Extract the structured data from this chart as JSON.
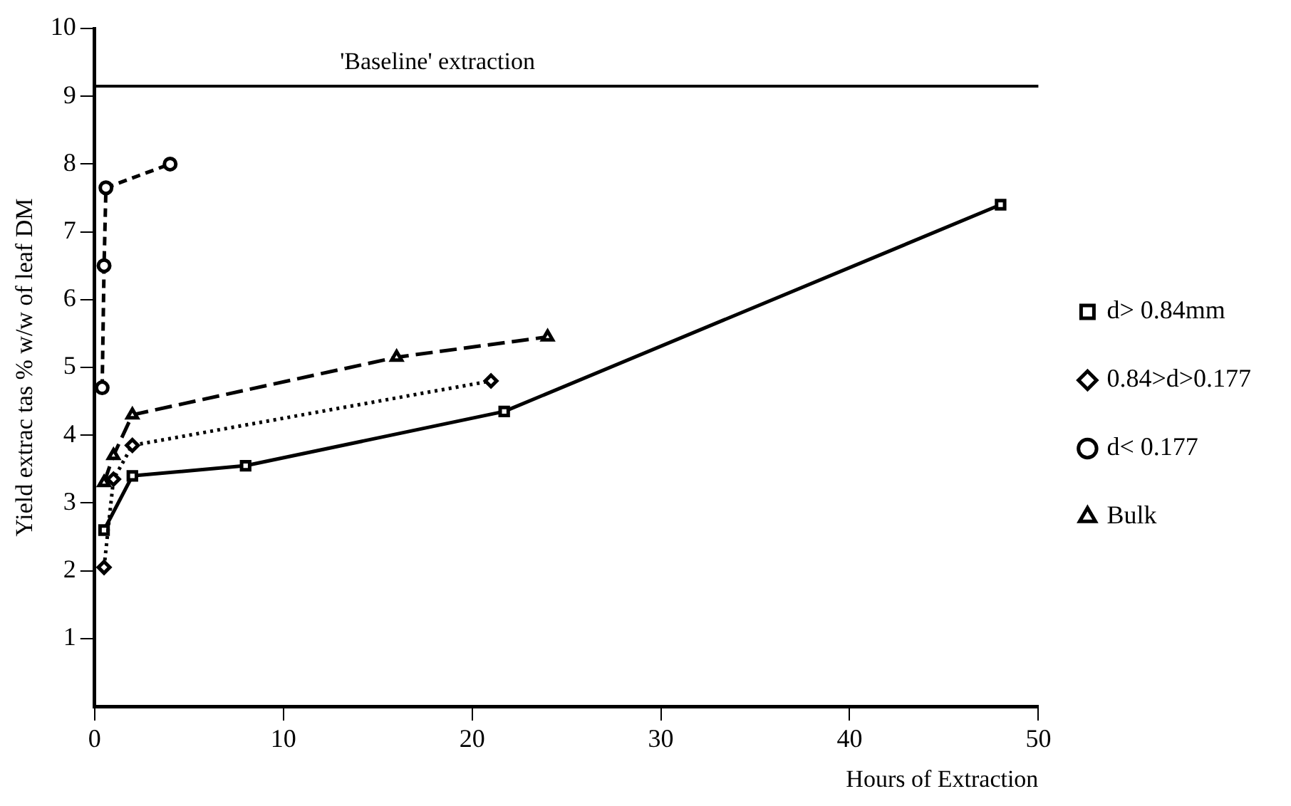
{
  "chart_data": {
    "type": "line",
    "xlabel": "Hours of Extraction",
    "ylabel": "Yield extrac tas % w/w of leaf DM",
    "xlim": [
      0,
      50
    ],
    "xticks": [
      0,
      10,
      20,
      30,
      40,
      50
    ],
    "ylim": [
      0,
      10
    ],
    "yticks": [
      1,
      2,
      3,
      4,
      5,
      6,
      7,
      8,
      9,
      10
    ],
    "grid": false,
    "legend": "right",
    "ref_lines": [
      {
        "axis": "y",
        "value": 9.15,
        "label": "'Baseline' extraction",
        "color": "#000000"
      }
    ],
    "series": [
      {
        "name": "d> 0.84mm",
        "color": "#000000",
        "marker": "square",
        "line_style": "solid",
        "x": [
          0.5,
          2,
          8,
          21.7,
          48
        ],
        "values": [
          2.6,
          3.4,
          3.55,
          4.35,
          7.4
        ]
      },
      {
        "name": "0.84>d>0.177",
        "color": "#000000",
        "marker": "diamond",
        "line_style": "dotted",
        "x": [
          0.5,
          1,
          2,
          21
        ],
        "values": [
          2.05,
          3.35,
          3.85,
          4.8
        ]
      },
      {
        "name": "d< 0.177",
        "color": "#000000",
        "marker": "circle",
        "line_style": "dashed",
        "x": [
          0.4,
          0.5,
          0.6,
          4
        ],
        "values": [
          4.7,
          6.5,
          7.65,
          8.0
        ]
      },
      {
        "name": "Bulk",
        "color": "#000000",
        "marker": "triangle",
        "line_style": "longdash",
        "x": [
          0.5,
          1,
          2,
          16,
          24
        ],
        "values": [
          3.3,
          3.7,
          4.3,
          5.15,
          5.45
        ]
      }
    ]
  }
}
